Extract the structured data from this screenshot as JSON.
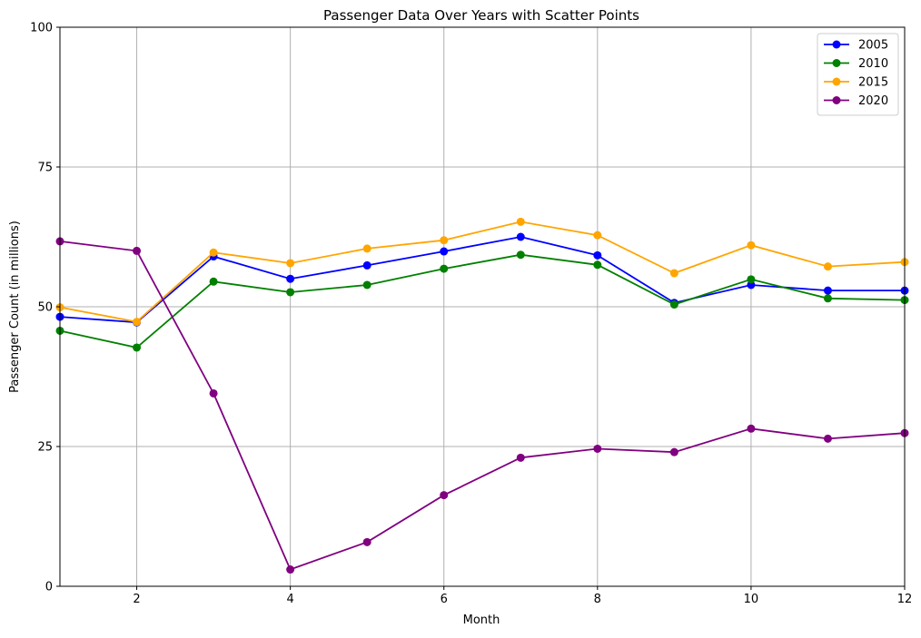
{
  "chart_data": {
    "type": "line",
    "title": "Passenger Data Over Years with Scatter Points",
    "xlabel": "Month",
    "ylabel": "Passenger Count (in millions)",
    "xlim": [
      1,
      12
    ],
    "ylim": [
      0,
      100
    ],
    "xticks": [
      2,
      4,
      6,
      8,
      10,
      12
    ],
    "yticks": [
      0,
      25,
      50,
      75,
      100
    ],
    "grid": true,
    "legend_position": "top-right",
    "x": [
      1,
      2,
      3,
      4,
      5,
      6,
      7,
      8,
      9,
      10,
      11,
      12
    ],
    "series": [
      {
        "name": "2005",
        "color": "#0000ff",
        "values": [
          48.2,
          47.2,
          59.0,
          55.0,
          57.4,
          59.9,
          62.5,
          59.2,
          50.7,
          53.9,
          52.9,
          52.9
        ]
      },
      {
        "name": "2010",
        "color": "#008000",
        "values": [
          45.7,
          42.7,
          54.5,
          52.6,
          53.9,
          56.8,
          59.3,
          57.5,
          50.4,
          54.9,
          51.5,
          51.2
        ]
      },
      {
        "name": "2015",
        "color": "#ffa500",
        "values": [
          49.9,
          47.3,
          59.7,
          57.8,
          60.4,
          61.9,
          65.2,
          62.8,
          56.0,
          61.0,
          57.2,
          58.0
        ]
      },
      {
        "name": "2020",
        "color": "#800080",
        "values": [
          61.7,
          60.0,
          34.5,
          3.0,
          7.9,
          16.3,
          23.0,
          24.6,
          24.0,
          28.2,
          26.4,
          27.4
        ]
      }
    ]
  }
}
